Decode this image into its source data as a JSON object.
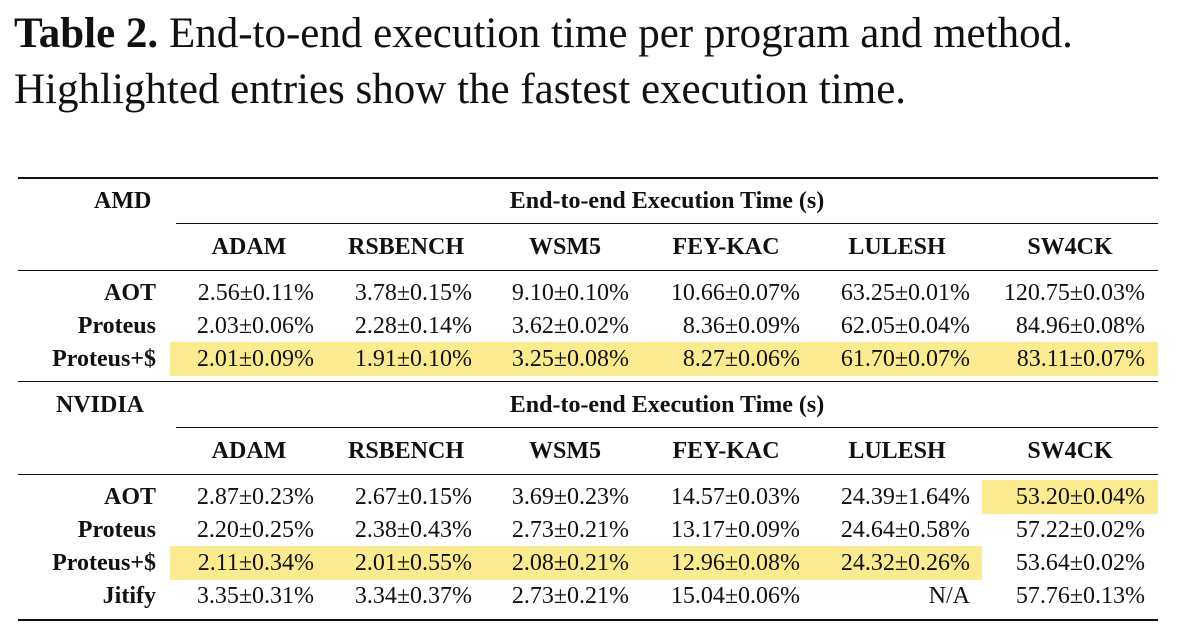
{
  "caption": {
    "label": "Table 2.",
    "text": "End-to-end execution time per program and method. Highlighted entries show the fastest execution time."
  },
  "highlight_color": "#fbeb90",
  "table": {
    "columns": [
      "ADAM",
      "RSBENCH",
      "WSM5",
      "FEY-KAC",
      "LULESH",
      "SW4CK"
    ],
    "groups": [
      {
        "label": "AMD",
        "header": "End-to-end Execution Time (s)",
        "rows": [
          {
            "label": "AOT",
            "values": [
              "2.56±0.11%",
              "3.78±0.15%",
              "9.10±0.10%",
              "10.66±0.07%",
              "63.25±0.01%",
              "120.75±0.03%"
            ]
          },
          {
            "label": "Proteus",
            "values": [
              "2.03±0.06%",
              "2.28±0.14%",
              "3.62±0.02%",
              "8.36±0.09%",
              "62.05±0.04%",
              "84.96±0.08%"
            ]
          },
          {
            "label": "Proteus+$",
            "values": [
              "2.01±0.09%",
              "1.91±0.10%",
              "3.25±0.08%",
              "8.27±0.06%",
              "61.70±0.07%",
              "83.11±0.07%"
            ]
          }
        ]
      },
      {
        "label": "NVIDIA",
        "header": "End-to-end Execution Time (s)",
        "rows": [
          {
            "label": "AOT",
            "values": [
              "2.87±0.23%",
              "2.67±0.15%",
              "3.69±0.23%",
              "14.57±0.03%",
              "24.39±1.64%",
              "53.20±0.04%"
            ]
          },
          {
            "label": "Proteus",
            "values": [
              "2.20±0.25%",
              "2.38±0.43%",
              "2.73±0.21%",
              "13.17±0.09%",
              "24.64±0.58%",
              "57.22±0.02%"
            ]
          },
          {
            "label": "Proteus+$",
            "values": [
              "2.11±0.34%",
              "2.01±0.55%",
              "2.08±0.21%",
              "12.96±0.08%",
              "24.32±0.26%",
              "53.64±0.02%"
            ]
          },
          {
            "label": "Jitify",
            "values": [
              "3.35±0.31%",
              "3.34±0.37%",
              "2.73±0.21%",
              "15.04±0.06%",
              "N/A",
              "57.76±0.13%"
            ]
          }
        ]
      }
    ]
  }
}
